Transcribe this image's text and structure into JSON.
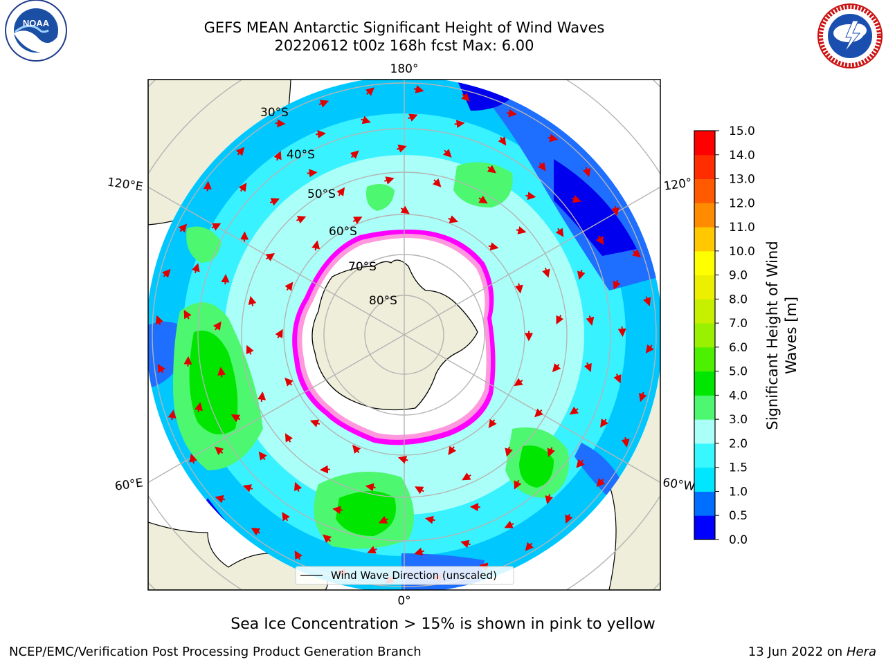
{
  "header": {
    "title_line1": "GEFS MEAN Antarctic Significant Height of Wind Waves",
    "title_line2": "20220612 t00z 168h fcst   Max: 6.00"
  },
  "logos": {
    "left": {
      "name": "noaa-logo",
      "text": "NOAA",
      "ring_text": "NATIONAL OCEANIC AND ATMOSPHERIC ADMINISTRATION · U.S. DEPARTMENT OF COMMERCE"
    },
    "right": {
      "name": "nws-logo",
      "ring_text": "NATIONAL WEATHER SERVICE"
    }
  },
  "map": {
    "projection": "south-polar-stereographic",
    "longitude_labels": [
      "180°",
      "120°E",
      "120°",
      "60°E",
      "60°W",
      "0°"
    ],
    "latitude_labels": [
      "30°S",
      "40°S",
      "50°S",
      "60°S",
      "70°S",
      "80°S"
    ],
    "legend_label": "Wind Wave Direction (unscaled)",
    "colors": {
      "land": "#eeeeda",
      "ice_interior": "#ffffff",
      "ice_edge": [
        "#ff00ff",
        "#ff66cc",
        "#ffcc00"
      ],
      "arrows": "#e00000"
    }
  },
  "colorbar": {
    "label_line1": "Significant Height of Wind",
    "label_line2": "Waves [m]",
    "ticks": [
      "0.0",
      "0.5",
      "1.0",
      "1.5",
      "2.0",
      "3.0",
      "4.0",
      "5.0",
      "6.0",
      "7.0",
      "8.0",
      "9.0",
      "10.0",
      "11.0",
      "12.0",
      "13.0",
      "14.0",
      "15.0"
    ],
    "colors": [
      "#0000ff",
      "#006eff",
      "#00e6ff",
      "#39f7ff",
      "#aafff8",
      "#4df76f",
      "#00e600",
      "#4cf000",
      "#99f000",
      "#c7f000",
      "#ecf000",
      "#ffff00",
      "#ffc800",
      "#ff8c00",
      "#ff5a00",
      "#ff2d00",
      "#ff0000"
    ]
  },
  "footer": {
    "ice_note": "Sea Ice Concentration > 15% is shown in pink to yellow",
    "credit": "NCEP/EMC/Verification Post Processing Product Generation Branch",
    "date": "13 Jun 2022 on",
    "host": "Hera"
  }
}
